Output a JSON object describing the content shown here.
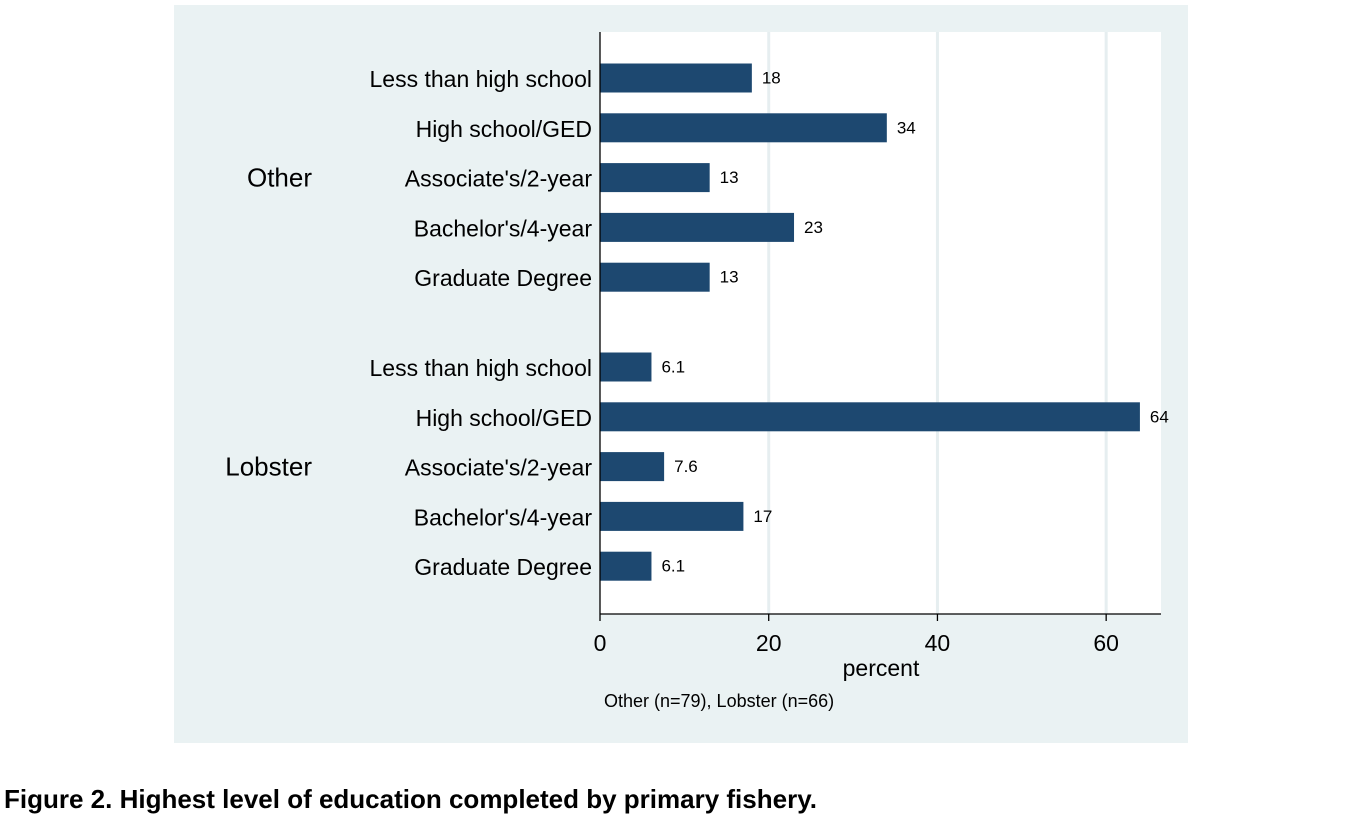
{
  "chart_data": {
    "type": "bar",
    "orientation": "horizontal",
    "xlabel": "percent",
    "note": "Other (n=79), Lobster (n=66)",
    "xlim": [
      0,
      66.5
    ],
    "x_ticks": [
      0,
      20,
      40,
      60
    ],
    "grid": true,
    "groups": [
      {
        "name": "Other",
        "categories": [
          "Less than high school",
          "High school/GED",
          "Associate's/2-year",
          "Bachelor's/4-year",
          "Graduate Degree"
        ],
        "values": [
          18,
          34,
          13,
          23,
          13
        ],
        "value_labels": [
          "18",
          "34",
          "13",
          "23",
          "13"
        ]
      },
      {
        "name": "Lobster",
        "categories": [
          "Less than high school",
          "High school/GED",
          "Associate's/2-year",
          "Bachelor's/4-year",
          "Graduate Degree"
        ],
        "values": [
          6.1,
          64,
          7.6,
          17,
          6.1
        ],
        "value_labels": [
          "6.1",
          "64",
          "7.6",
          "17",
          "6.1"
        ]
      }
    ]
  },
  "colors": {
    "bar": "#1d4870",
    "panel_background": "#eaf2f3",
    "plot_background": "#ffffff",
    "grid": "#e6eef0"
  },
  "caption": "Figure 2. Highest level of education completed by primary fishery."
}
